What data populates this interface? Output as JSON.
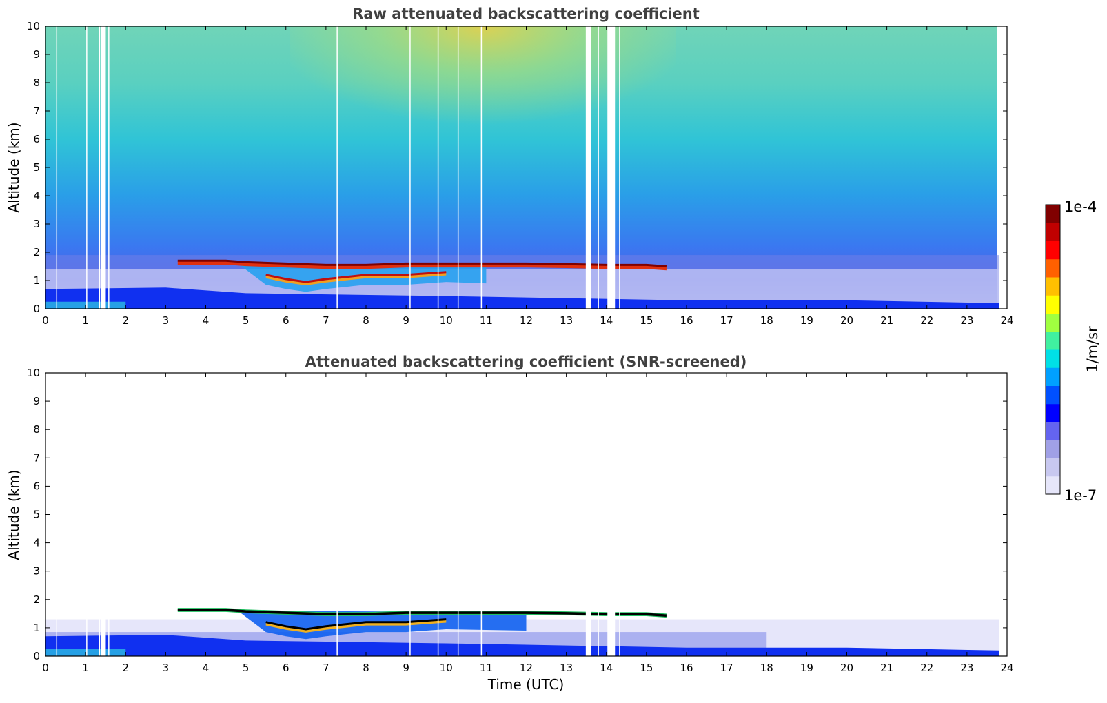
{
  "chart_data": [
    {
      "type": "heatmap",
      "title": "Raw attenuated backscattering coefficient",
      "xlabel": "",
      "ylabel": "Altitude (km)",
      "xlim": [
        0,
        24
      ],
      "ylim": [
        0,
        10
      ],
      "xticks": [
        "0",
        "1",
        "2",
        "3",
        "4",
        "5",
        "6",
        "7",
        "8",
        "9",
        "10",
        "11",
        "12",
        "13",
        "14",
        "15",
        "16",
        "17",
        "18",
        "19",
        "20",
        "21",
        "22",
        "23",
        "24"
      ],
      "yticks": [
        "0",
        "1",
        "2",
        "3",
        "4",
        "5",
        "6",
        "7",
        "8",
        "9",
        "10"
      ],
      "gaps_utc": [
        0.28,
        1.03,
        1.35,
        1.42,
        1.47,
        1.58,
        7.28,
        9.1,
        9.8,
        10.3,
        10.88,
        13.52,
        13.58,
        13.8,
        14.06,
        14.12,
        14.18,
        14.33
      ],
      "cloud_layer": {
        "top_km": [
          [
            3.3,
            1.7
          ],
          [
            4.5,
            1.7
          ],
          [
            5,
            1.65
          ],
          [
            6,
            1.6
          ],
          [
            7,
            1.55
          ],
          [
            8,
            1.55
          ],
          [
            9,
            1.6
          ],
          [
            10,
            1.6
          ],
          [
            11,
            1.6
          ],
          [
            12,
            1.6
          ],
          [
            13,
            1.58
          ],
          [
            14,
            1.55
          ],
          [
            15,
            1.55
          ],
          [
            15.5,
            1.5
          ]
        ],
        "lower_branch_km": [
          [
            5.5,
            1.2
          ],
          [
            6,
            1.05
          ],
          [
            6.5,
            0.95
          ],
          [
            7,
            1.05
          ],
          [
            8,
            1.2
          ],
          [
            9,
            1.2
          ],
          [
            10,
            1.3
          ]
        ]
      },
      "boundary_layer_top_km": [
        [
          0,
          0.7
        ],
        [
          3,
          0.75
        ],
        [
          5,
          0.55
        ],
        [
          10,
          0.45
        ],
        [
          16,
          0.3
        ],
        [
          20,
          0.3
        ],
        [
          23.8,
          0.2
        ]
      ],
      "data_end_utc": 23.8
    },
    {
      "type": "heatmap",
      "title": "Attenuated backscattering coefficient (SNR-screened)",
      "xlabel": "Time (UTC)",
      "ylabel": "Altitude (km)",
      "xlim": [
        0,
        24
      ],
      "ylim": [
        0,
        10
      ],
      "xticks": [
        "0",
        "1",
        "2",
        "3",
        "4",
        "5",
        "6",
        "7",
        "8",
        "9",
        "10",
        "11",
        "12",
        "13",
        "14",
        "15",
        "16",
        "17",
        "18",
        "19",
        "20",
        "21",
        "22",
        "23",
        "24"
      ],
      "yticks": [
        "0",
        "1",
        "2",
        "3",
        "4",
        "5",
        "6",
        "7",
        "8",
        "9",
        "10"
      ],
      "screened_top_km": 1.3
    }
  ],
  "colorbar": {
    "label": "1/m/sr",
    "max_label": "1e-4",
    "min_label": "1e-7",
    "scale": "log",
    "colors": [
      "#e6e6fa",
      "#c8c8f0",
      "#a0a0e6",
      "#6464f0",
      "#0000ff",
      "#0050ff",
      "#00a0ff",
      "#00e0e6",
      "#40f0a0",
      "#a0ff40",
      "#ffff00",
      "#ffc000",
      "#ff6000",
      "#ff0000",
      "#c00000",
      "#800000"
    ]
  }
}
